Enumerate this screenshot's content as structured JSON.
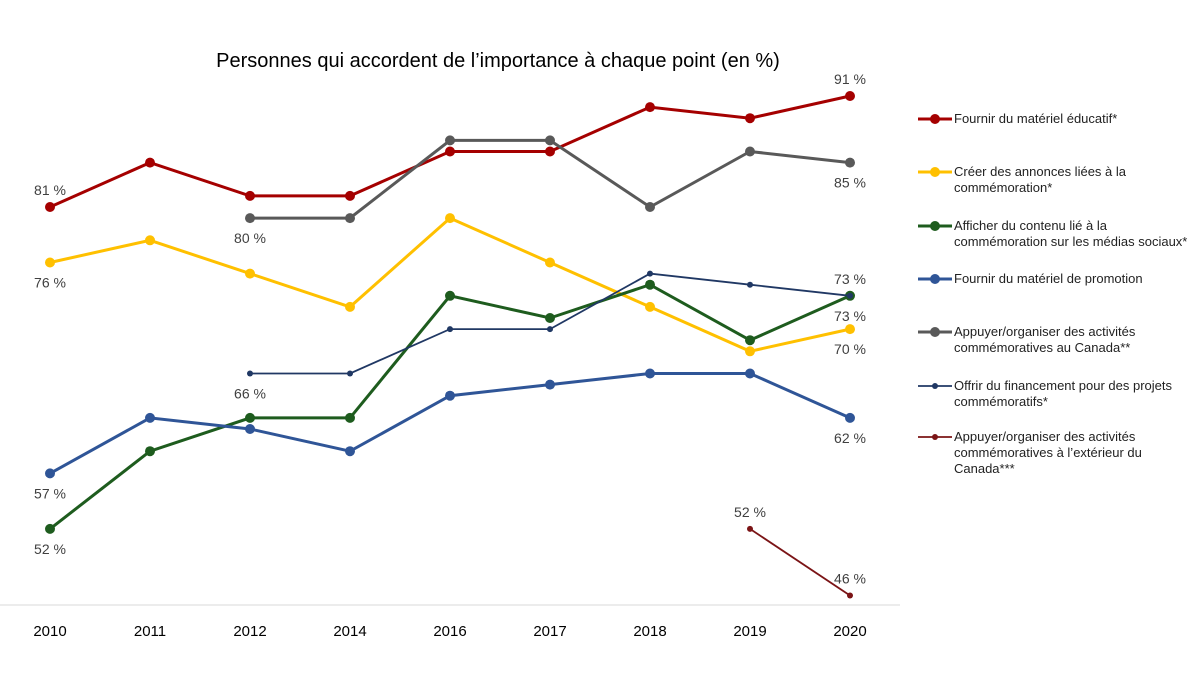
{
  "chart_data": {
    "type": "line",
    "title": "Personnes qui accordent de l’importance à chaque point (en %)",
    "categories": [
      "2010",
      "2011",
      "2012",
      "2014",
      "2016",
      "2017",
      "2018",
      "2019",
      "2020"
    ],
    "ylim": [
      45,
      95
    ],
    "grid": false,
    "legend_placement": "right",
    "series": [
      {
        "name": "Fournir du matériel éducatif*",
        "color": "#A50000",
        "marker": "large",
        "values": [
          81,
          85,
          82,
          82,
          86,
          86,
          90,
          89,
          91
        ]
      },
      {
        "name": "Créer des annonces liées à la commémoration*",
        "color": "#FFC000",
        "marker": "large",
        "values": [
          76,
          78,
          75,
          72,
          80,
          76,
          72,
          68,
          70
        ]
      },
      {
        "name": "Afficher du contenu lié à la commémoration sur les médias sociaux*",
        "color": "#1E5C1E",
        "marker": "large",
        "values": [
          52,
          59,
          62,
          62,
          73,
          71,
          74,
          69,
          73
        ]
      },
      {
        "name": "Fournir du matériel de promotion",
        "color": "#2F5597",
        "marker": "large",
        "values": [
          57,
          62,
          61,
          59,
          64,
          65,
          66,
          66,
          62
        ]
      },
      {
        "name": "Appuyer/organiser des activités commémoratives au Canada**",
        "color": "#595959",
        "marker": "large",
        "values": [
          null,
          null,
          80,
          80,
          87,
          87,
          81,
          86,
          85
        ]
      },
      {
        "name": "Offrir du financement pour des projets commémoratifs*",
        "color": "#203864",
        "marker": "small",
        "values": [
          null,
          null,
          66,
          66,
          70,
          70,
          75,
          74,
          73
        ]
      },
      {
        "name": "Appuyer/organiser des activités commémoratives à l’extérieur du Canada***",
        "color": "#7B1416",
        "marker": "small",
        "values": [
          null,
          null,
          null,
          null,
          null,
          null,
          null,
          52,
          46
        ]
      }
    ],
    "data_labels": [
      {
        "series": 0,
        "category": "2010",
        "text": "81 %",
        "pos": "above"
      },
      {
        "series": 0,
        "category": "2020",
        "text": "91 %",
        "pos": "above"
      },
      {
        "series": 4,
        "category": "2020",
        "text": "85 %",
        "pos": "below"
      },
      {
        "series": 4,
        "category": "2012",
        "text": "80 %",
        "pos": "below"
      },
      {
        "series": 1,
        "category": "2010",
        "text": "76 %",
        "pos": "below"
      },
      {
        "series": 5,
        "category": "2020",
        "text": "73 %",
        "pos": "above"
      },
      {
        "series": 2,
        "category": "2020",
        "text": "73 %",
        "pos": "below2"
      },
      {
        "series": 1,
        "category": "2020",
        "text": "70 %",
        "pos": "below"
      },
      {
        "series": 5,
        "category": "2012",
        "text": "66 %",
        "pos": "below"
      },
      {
        "series": 3,
        "category": "2010",
        "text": "57 %",
        "pos": "below"
      },
      {
        "series": 3,
        "category": "2020",
        "text": "62 %",
        "pos": "below"
      },
      {
        "series": 2,
        "category": "2010",
        "text": "52 %",
        "pos": "below"
      },
      {
        "series": 6,
        "category": "2019",
        "text": "52 %",
        "pos": "above"
      },
      {
        "series": 6,
        "category": "2020",
        "text": "46 %",
        "pos": "above"
      }
    ]
  }
}
